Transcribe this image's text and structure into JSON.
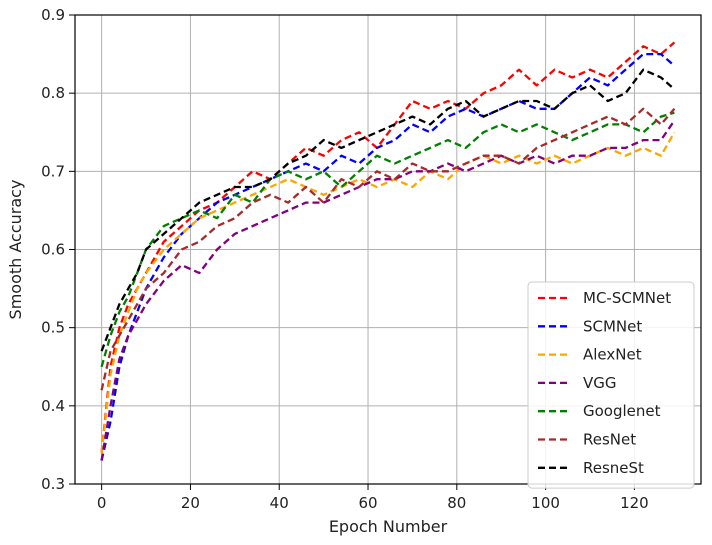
{
  "chart_data": {
    "type": "line",
    "xlabel": "Epoch Number",
    "ylabel": "Smooth Accuracy",
    "xlim": [
      -6,
      135
    ],
    "ylim": [
      0.3,
      0.9
    ],
    "xticks": [
      0,
      20,
      40,
      60,
      80,
      100,
      120
    ],
    "yticks": [
      0.3,
      0.4,
      0.5,
      0.6,
      0.7,
      0.8,
      0.9
    ],
    "xtick_labels": [
      "0",
      "20",
      "40",
      "60",
      "80",
      "100",
      "120"
    ],
    "ytick_labels": [
      "0.3",
      "0.4",
      "0.5",
      "0.6",
      "0.7",
      "0.8",
      "0.9"
    ],
    "grid": true,
    "legend_position": "lower-right",
    "line_style": "dashed",
    "series": [
      {
        "name": "MC-SCMNet",
        "color": "#ff0000",
        "x": [
          0,
          2,
          4,
          6,
          8,
          10,
          14,
          18,
          22,
          26,
          30,
          34,
          38,
          42,
          46,
          50,
          54,
          58,
          62,
          66,
          70,
          74,
          78,
          82,
          86,
          90,
          94,
          98,
          102,
          106,
          110,
          114,
          118,
          122,
          126,
          129
        ],
        "y": [
          0.34,
          0.45,
          0.5,
          0.53,
          0.55,
          0.57,
          0.61,
          0.63,
          0.65,
          0.66,
          0.68,
          0.7,
          0.69,
          0.71,
          0.73,
          0.72,
          0.74,
          0.75,
          0.73,
          0.76,
          0.79,
          0.78,
          0.79,
          0.78,
          0.8,
          0.81,
          0.83,
          0.81,
          0.83,
          0.82,
          0.83,
          0.82,
          0.84,
          0.86,
          0.85,
          0.865
        ]
      },
      {
        "name": "SCMNet",
        "color": "#0000ff",
        "x": [
          0,
          2,
          4,
          6,
          8,
          10,
          14,
          18,
          22,
          26,
          30,
          34,
          38,
          42,
          46,
          50,
          54,
          58,
          62,
          66,
          70,
          74,
          78,
          82,
          86,
          90,
          94,
          98,
          102,
          106,
          110,
          114,
          118,
          122,
          126,
          129
        ],
        "y": [
          0.33,
          0.38,
          0.45,
          0.49,
          0.52,
          0.55,
          0.59,
          0.62,
          0.64,
          0.66,
          0.67,
          0.68,
          0.69,
          0.7,
          0.71,
          0.7,
          0.72,
          0.71,
          0.73,
          0.74,
          0.76,
          0.75,
          0.77,
          0.78,
          0.77,
          0.78,
          0.79,
          0.78,
          0.78,
          0.8,
          0.82,
          0.81,
          0.83,
          0.85,
          0.85,
          0.835
        ]
      },
      {
        "name": "AlexNet",
        "color": "#ffa500",
        "x": [
          0,
          2,
          4,
          6,
          8,
          10,
          14,
          18,
          22,
          26,
          30,
          34,
          38,
          42,
          46,
          50,
          54,
          58,
          62,
          66,
          70,
          74,
          78,
          82,
          86,
          90,
          94,
          98,
          102,
          106,
          110,
          114,
          118,
          122,
          126,
          129
        ],
        "y": [
          0.34,
          0.44,
          0.49,
          0.52,
          0.55,
          0.57,
          0.6,
          0.62,
          0.64,
          0.65,
          0.66,
          0.67,
          0.68,
          0.69,
          0.68,
          0.67,
          0.68,
          0.69,
          0.68,
          0.69,
          0.68,
          0.7,
          0.69,
          0.71,
          0.72,
          0.71,
          0.72,
          0.71,
          0.72,
          0.71,
          0.72,
          0.73,
          0.72,
          0.73,
          0.72,
          0.75
        ]
      },
      {
        "name": "VGG",
        "color": "#800080",
        "x": [
          0,
          2,
          4,
          6,
          8,
          10,
          14,
          18,
          22,
          26,
          30,
          34,
          38,
          42,
          46,
          50,
          54,
          58,
          62,
          66,
          70,
          74,
          78,
          82,
          86,
          90,
          94,
          98,
          102,
          106,
          110,
          114,
          118,
          122,
          126,
          129
        ],
        "y": [
          0.33,
          0.4,
          0.46,
          0.49,
          0.51,
          0.53,
          0.56,
          0.58,
          0.57,
          0.6,
          0.62,
          0.63,
          0.64,
          0.65,
          0.66,
          0.66,
          0.67,
          0.68,
          0.69,
          0.69,
          0.7,
          0.7,
          0.71,
          0.7,
          0.71,
          0.72,
          0.71,
          0.72,
          0.71,
          0.72,
          0.72,
          0.73,
          0.73,
          0.74,
          0.74,
          0.765
        ]
      },
      {
        "name": "Googlenet",
        "color": "#008000",
        "x": [
          0,
          2,
          4,
          6,
          8,
          10,
          14,
          18,
          22,
          26,
          30,
          34,
          38,
          42,
          46,
          50,
          54,
          58,
          62,
          66,
          70,
          74,
          78,
          82,
          86,
          90,
          94,
          98,
          102,
          106,
          110,
          114,
          118,
          122,
          126,
          129
        ],
        "y": [
          0.45,
          0.49,
          0.52,
          0.54,
          0.57,
          0.6,
          0.63,
          0.64,
          0.65,
          0.64,
          0.67,
          0.66,
          0.69,
          0.7,
          0.69,
          0.7,
          0.68,
          0.7,
          0.72,
          0.71,
          0.72,
          0.73,
          0.74,
          0.73,
          0.75,
          0.76,
          0.75,
          0.76,
          0.75,
          0.74,
          0.75,
          0.76,
          0.76,
          0.75,
          0.77,
          0.775
        ]
      },
      {
        "name": "ResNet",
        "color": "#a52a2a",
        "x": [
          0,
          2,
          4,
          6,
          8,
          10,
          14,
          18,
          22,
          26,
          30,
          34,
          38,
          42,
          46,
          50,
          54,
          58,
          62,
          66,
          70,
          74,
          78,
          82,
          86,
          90,
          94,
          98,
          102,
          106,
          110,
          114,
          118,
          122,
          126,
          129
        ],
        "y": [
          0.42,
          0.47,
          0.49,
          0.51,
          0.53,
          0.55,
          0.57,
          0.6,
          0.61,
          0.63,
          0.64,
          0.66,
          0.67,
          0.66,
          0.68,
          0.66,
          0.69,
          0.68,
          0.7,
          0.69,
          0.71,
          0.7,
          0.7,
          0.71,
          0.72,
          0.72,
          0.71,
          0.73,
          0.74,
          0.75,
          0.76,
          0.77,
          0.76,
          0.78,
          0.76,
          0.78
        ]
      },
      {
        "name": "ResneSt",
        "color": "#000000",
        "x": [
          0,
          2,
          4,
          6,
          8,
          10,
          14,
          18,
          22,
          26,
          30,
          34,
          38,
          42,
          46,
          50,
          54,
          58,
          62,
          66,
          70,
          74,
          78,
          82,
          86,
          90,
          94,
          98,
          102,
          106,
          110,
          114,
          118,
          122,
          126,
          129
        ],
        "y": [
          0.47,
          0.5,
          0.53,
          0.55,
          0.57,
          0.6,
          0.62,
          0.64,
          0.66,
          0.67,
          0.68,
          0.68,
          0.69,
          0.71,
          0.72,
          0.74,
          0.73,
          0.74,
          0.75,
          0.76,
          0.77,
          0.76,
          0.78,
          0.79,
          0.77,
          0.78,
          0.79,
          0.79,
          0.78,
          0.8,
          0.81,
          0.79,
          0.8,
          0.83,
          0.82,
          0.805
        ]
      }
    ]
  }
}
